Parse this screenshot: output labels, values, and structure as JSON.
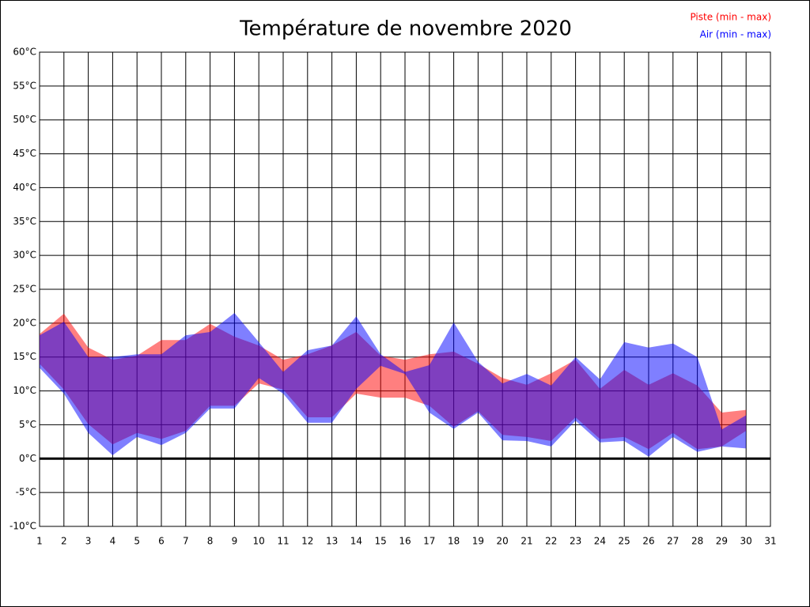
{
  "chart_data": {
    "type": "range-area",
    "title": "Température de novembre 2020",
    "x": [
      1,
      2,
      3,
      4,
      5,
      6,
      7,
      8,
      9,
      10,
      11,
      12,
      13,
      14,
      15,
      16,
      17,
      18,
      19,
      20,
      21,
      22,
      23,
      24,
      25,
      26,
      27,
      28,
      29,
      30
    ],
    "series": [
      {
        "name": "Piste (min - max)",
        "color": "#ff0000",
        "low": [
          14,
          10.2,
          5.1,
          2.1,
          3.8,
          2.9,
          4.1,
          7.8,
          7.8,
          11.1,
          10.2,
          6.1,
          6.1,
          9.6,
          9,
          9,
          7.8,
          4.7,
          7,
          3.5,
          3.2,
          2.6,
          6.1,
          2.9,
          3.2,
          1.4,
          3.8,
          1.4,
          1.8,
          4.1
        ],
        "high": [
          18.4,
          21.4,
          16.4,
          14.6,
          15.2,
          17.5,
          17.5,
          19.9,
          18,
          16.7,
          14.6,
          15.4,
          16.7,
          18.7,
          15.2,
          14.6,
          15.4,
          15.8,
          14,
          11.9,
          10.9,
          12.6,
          14.6,
          10.3,
          13.1,
          10.9,
          12.6,
          10.8,
          6.8,
          7.2
        ]
      },
      {
        "name": "Air (min - max)",
        "color": "#0000ff",
        "low": [
          13.4,
          9.6,
          3.8,
          0.5,
          3.2,
          2,
          3.8,
          7.4,
          7.4,
          11.9,
          9.6,
          5.3,
          5.3,
          10.3,
          13.7,
          12.5,
          6.8,
          4.4,
          6.8,
          2.7,
          2.6,
          1.8,
          5.6,
          2.4,
          2.6,
          0.3,
          3.2,
          1,
          1.8,
          1.5
        ],
        "high": [
          18.2,
          20.2,
          15,
          15,
          15.4,
          15.4,
          18.2,
          18.7,
          21.5,
          17.2,
          12.8,
          16,
          16.7,
          21,
          15.4,
          12.8,
          13.8,
          20.1,
          14.3,
          11.1,
          12.5,
          10.8,
          15,
          11.7,
          17.2,
          16.4,
          17,
          15,
          4.3,
          6.4
        ]
      }
    ],
    "xlim": [
      1,
      31
    ],
    "xticks": [
      1,
      2,
      3,
      4,
      5,
      6,
      7,
      8,
      9,
      10,
      11,
      12,
      13,
      14,
      15,
      16,
      17,
      18,
      19,
      20,
      21,
      22,
      23,
      24,
      25,
      26,
      27,
      28,
      29,
      30,
      31
    ],
    "ylim": [
      -10,
      60
    ],
    "yticks": [
      {
        "value": -10,
        "label": "-10°C"
      },
      {
        "value": -5,
        "label": "-5°C"
      },
      {
        "value": 0,
        "label": "0°C"
      },
      {
        "value": 5,
        "label": "5°C"
      },
      {
        "value": 10,
        "label": "10°C"
      },
      {
        "value": 15,
        "label": "15°C"
      },
      {
        "value": 20,
        "label": "20°C"
      },
      {
        "value": 25,
        "label": "25°C"
      },
      {
        "value": 30,
        "label": "30°C"
      },
      {
        "value": 35,
        "label": "35°C"
      },
      {
        "value": 40,
        "label": "40°C"
      },
      {
        "value": 45,
        "label": "45°C"
      },
      {
        "value": 50,
        "label": "50°C"
      },
      {
        "value": 55,
        "label": "55°C"
      },
      {
        "value": 60,
        "label": "60°C"
      }
    ],
    "grid": true,
    "legend": "top-right"
  }
}
